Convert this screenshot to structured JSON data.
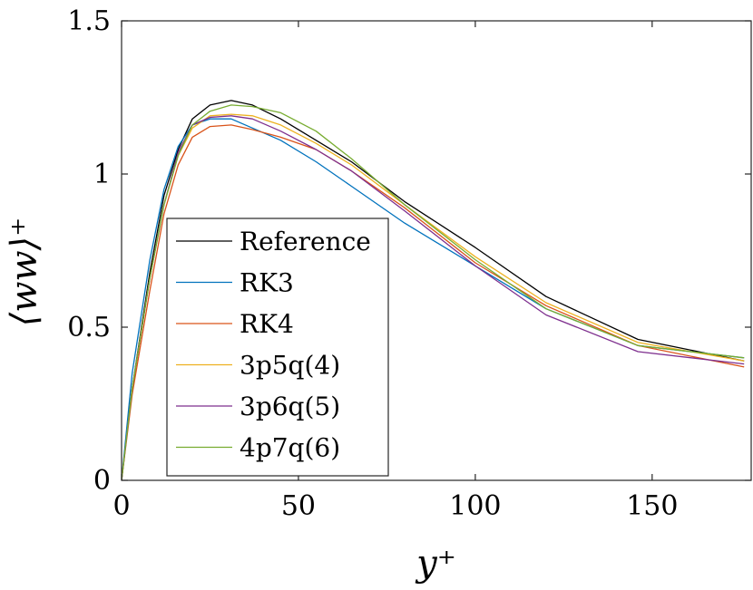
{
  "chart_data": {
    "type": "line",
    "title": "",
    "xlabel": "y⁺",
    "ylabel": "⟨ww⟩⁺",
    "xlim": [
      0,
      178
    ],
    "ylim": [
      0,
      1.5
    ],
    "xticks": [
      0,
      50,
      100,
      150
    ],
    "xtick_labels": [
      "0",
      "50",
      "100",
      "150"
    ],
    "yticks": [
      0,
      0.5,
      1,
      1.5
    ],
    "ytick_labels": [
      "0",
      "0.5",
      "1",
      "1.5"
    ],
    "grid": false,
    "legend_position": "lower-left",
    "series": [
      {
        "name": "Reference",
        "color": "#000000",
        "x": [
          0,
          3,
          8,
          12,
          16,
          20,
          25,
          31,
          37,
          45,
          55,
          65,
          80,
          100,
          120,
          146,
          176
        ],
        "y": [
          0,
          0.3,
          0.68,
          0.93,
          1.08,
          1.18,
          1.225,
          1.24,
          1.225,
          1.18,
          1.11,
          1.04,
          0.91,
          0.76,
          0.6,
          0.46,
          0.39
        ]
      },
      {
        "name": "RK3",
        "color": "#0072BD",
        "x": [
          0,
          3,
          8,
          12,
          16,
          20,
          25,
          31,
          37,
          45,
          55,
          65,
          80,
          100,
          120,
          146,
          176
        ],
        "y": [
          0,
          0.35,
          0.72,
          0.95,
          1.09,
          1.16,
          1.18,
          1.18,
          1.15,
          1.11,
          1.04,
          0.96,
          0.84,
          0.7,
          0.56,
          0.44,
          0.4
        ]
      },
      {
        "name": "RK4",
        "color": "#D95319",
        "x": [
          0,
          3,
          8,
          12,
          16,
          20,
          25,
          31,
          37,
          45,
          55,
          65,
          80,
          100,
          120,
          146,
          176
        ],
        "y": [
          0,
          0.28,
          0.62,
          0.87,
          1.03,
          1.12,
          1.155,
          1.16,
          1.145,
          1.12,
          1.08,
          1.01,
          0.89,
          0.71,
          0.57,
          0.44,
          0.37
        ]
      },
      {
        "name": "3p5q(4)",
        "color": "#EDB120",
        "x": [
          0,
          3,
          8,
          12,
          16,
          20,
          25,
          31,
          37,
          45,
          55,
          65,
          80,
          100,
          120,
          146,
          176
        ],
        "y": [
          0,
          0.3,
          0.66,
          0.9,
          1.06,
          1.15,
          1.19,
          1.195,
          1.19,
          1.16,
          1.1,
          1.03,
          0.9,
          0.73,
          0.58,
          0.45,
          0.39
        ]
      },
      {
        "name": "3p6q(5)",
        "color": "#7E2F8E",
        "x": [
          0,
          3,
          8,
          12,
          16,
          20,
          25,
          31,
          37,
          45,
          55,
          65,
          80,
          100,
          120,
          146,
          176
        ],
        "y": [
          0,
          0.3,
          0.66,
          0.9,
          1.07,
          1.16,
          1.185,
          1.19,
          1.18,
          1.14,
          1.08,
          1.01,
          0.88,
          0.7,
          0.54,
          0.42,
          0.38
        ]
      },
      {
        "name": "4p7q(6)",
        "color": "#77AC30",
        "x": [
          0,
          3,
          8,
          12,
          16,
          20,
          25,
          31,
          37,
          45,
          55,
          65,
          80,
          100,
          120,
          146,
          176
        ],
        "y": [
          0,
          0.3,
          0.66,
          0.9,
          1.06,
          1.16,
          1.205,
          1.225,
          1.22,
          1.2,
          1.14,
          1.05,
          0.9,
          0.72,
          0.56,
          0.44,
          0.4
        ]
      }
    ]
  }
}
